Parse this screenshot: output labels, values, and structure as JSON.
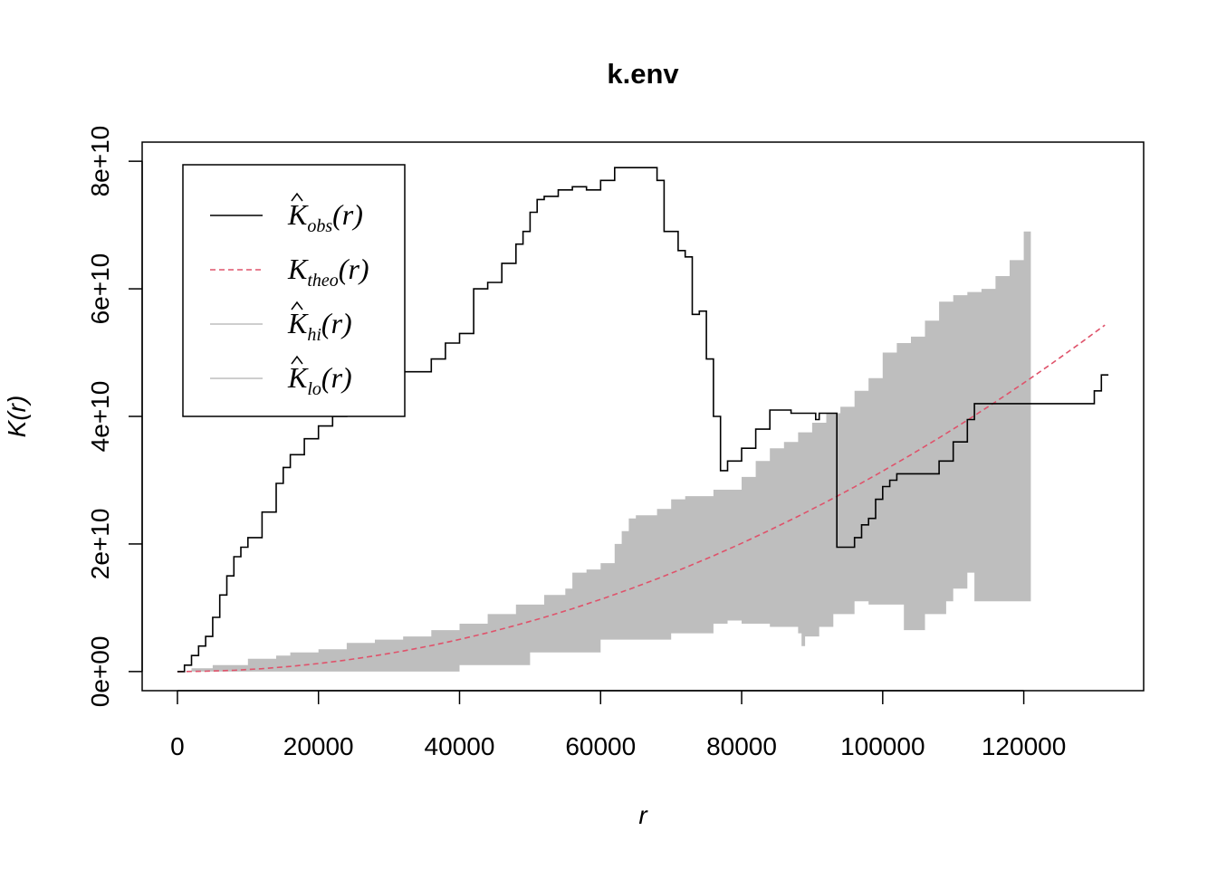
{
  "chart_data": {
    "type": "line",
    "title": "k.env",
    "xlabel": "r",
    "ylabel": "K(r)",
    "xlim": [
      -5000,
      137000
    ],
    "ylim": [
      -3000000000,
      83000000000
    ],
    "x_ticks": [
      0,
      20000,
      40000,
      60000,
      80000,
      100000,
      120000
    ],
    "x_tick_labels": [
      "0",
      "20000",
      "40000",
      "60000",
      "80000",
      "100000",
      "120000"
    ],
    "y_ticks": [
      0,
      20000000000,
      40000000000,
      60000000000,
      80000000000
    ],
    "y_tick_labels": [
      "0e+00",
      "2e+10",
      "4e+10",
      "6e+10",
      "8e+10"
    ],
    "legend": {
      "position": "top-left",
      "entries": [
        {
          "base": "K",
          "sub": "obs",
          "suffix": "(r)",
          "hat": true,
          "color": "#000000",
          "style": "solid"
        },
        {
          "base": "K",
          "sub": "theo",
          "suffix": "(r)",
          "hat": false,
          "color": "#DF536B",
          "style": "dashed"
        },
        {
          "base": "K",
          "sub": "hi",
          "suffix": "(r)",
          "hat": true,
          "color": "#BEBEBE",
          "style": "solid"
        },
        {
          "base": "K",
          "sub": "lo",
          "suffix": "(r)",
          "hat": true,
          "color": "#BEBEBE",
          "style": "solid"
        }
      ]
    },
    "series": [
      {
        "name": "obs",
        "color": "#000000",
        "style": "step",
        "x": [
          0,
          1000,
          2000,
          3000,
          4000,
          5000,
          6000,
          7000,
          8000,
          9000,
          10000,
          12000,
          14000,
          15000,
          16000,
          18000,
          20000,
          22000,
          24000,
          26000,
          28000,
          30000,
          32000,
          36000,
          38000,
          40000,
          42000,
          44000,
          46000,
          48000,
          49000,
          50000,
          51000,
          52000,
          54000,
          56000,
          58000,
          60000,
          62000,
          66000,
          68000,
          69000,
          71000,
          72000,
          73000,
          74000,
          75000,
          76000,
          77000,
          78000,
          80000,
          82000,
          84000,
          87000,
          90000,
          90500,
          91000,
          93000,
          93500,
          94000,
          96000,
          97000,
          98000,
          99000,
          100000,
          101000,
          102000,
          104000,
          108000,
          110000,
          112000,
          113000,
          129000,
          130000,
          131000,
          132000
        ],
        "y": [
          0,
          1000000000,
          2500000000,
          4000000000,
          5500000000,
          8500000000,
          12000000000,
          15000000000,
          18000000000,
          19500000000,
          21000000000,
          25000000000,
          29500000000,
          32000000000,
          34000000000,
          36500000000,
          38500000000,
          40000000000,
          40500000000,
          41500000000,
          43500000000,
          45500000000,
          47000000000,
          49000000000,
          51500000000,
          53000000000,
          60000000000,
          61000000000,
          64000000000,
          67000000000,
          69000000000,
          72000000000,
          74000000000,
          74500000000,
          75500000000,
          76000000000,
          75500000000,
          77000000000,
          79000000000,
          79000000000,
          77000000000,
          69000000000,
          66000000000,
          65000000000,
          56000000000,
          56500000000,
          49000000000,
          40000000000,
          31500000000,
          33000000000,
          35000000000,
          38000000000,
          41000000000,
          40500000000,
          40500000000,
          39500000000,
          40500000000,
          40500000000,
          19500000000,
          19500000000,
          21000000000,
          23000000000,
          24000000000,
          27000000000,
          29000000000,
          30000000000,
          31000000000,
          31000000000,
          33000000000,
          36000000000,
          39500000000,
          42000000000,
          42000000000,
          44000000000,
          46500000000,
          46500000000
        ]
      },
      {
        "name": "theo",
        "color": "#DF536B",
        "style": "dashed",
        "x": [
          0,
          4000,
          8000,
          12000,
          16000,
          20000,
          24000,
          28000,
          32000,
          36000,
          40000,
          44000,
          48000,
          52000,
          56000,
          60000,
          64000,
          68000,
          72000,
          76000,
          80000,
          84000,
          88000,
          92000,
          96000,
          100000,
          104000,
          108000,
          112000,
          116000,
          120000,
          124000,
          128000,
          131500
        ],
        "y": [
          0,
          50000000,
          200000000,
          450000000,
          800000000,
          1260000000,
          1810000000,
          2460000000,
          3220000000,
          4070000000,
          5030000000,
          6080000000,
          7240000000,
          8490000000,
          9850000000,
          11300000000,
          12870000000,
          14530000000,
          16290000000,
          18150000000,
          20110000000,
          22170000000,
          24330000000,
          26590000000,
          28950000000,
          31420000000,
          33980000000,
          36640000000,
          39410000000,
          42270000000,
          45240000000,
          48300000000,
          51470000000,
          54320000000
        ]
      },
      {
        "name": "hi",
        "color": "#BEBEBE",
        "style": "step",
        "x": [
          0,
          2000,
          5000,
          10000,
          14000,
          16000,
          20000,
          24000,
          28000,
          32000,
          36000,
          40000,
          44000,
          48000,
          52000,
          55000,
          56000,
          58000,
          60000,
          62000,
          63000,
          64000,
          65000,
          68000,
          70000,
          72000,
          76000,
          80000,
          82000,
          84000,
          86000,
          88000,
          90000,
          92000,
          94000,
          96000,
          98000,
          100000,
          102000,
          104000,
          106000,
          108000,
          110000,
          112000,
          114000,
          116000,
          118000,
          120000,
          121000
        ],
        "y": [
          0,
          500000000,
          1000000000,
          2000000000,
          2500000000,
          3000000000,
          3500000000,
          4500000000,
          5000000000,
          5500000000,
          6500000000,
          7500000000,
          9000000000,
          10500000000,
          12000000000,
          13000000000,
          15500000000,
          16000000000,
          17000000000,
          20000000000,
          22000000000,
          24000000000,
          24500000000,
          25500000000,
          27000000000,
          27500000000,
          28500000000,
          30500000000,
          33000000000,
          35000000000,
          36000000000,
          37500000000,
          39000000000,
          40500000000,
          41500000000,
          44000000000,
          46000000000,
          50000000000,
          51500000000,
          52500000000,
          55000000000,
          58000000000,
          59000000000,
          59500000000,
          60000000000,
          62000000000,
          64500000000,
          69000000000,
          69000000000
        ]
      },
      {
        "name": "lo",
        "color": "#BEBEBE",
        "style": "step",
        "x": [
          0,
          20000,
          30000,
          40000,
          50000,
          60000,
          70000,
          76000,
          78000,
          80000,
          84000,
          88000,
          88500,
          89000,
          91000,
          93000,
          96000,
          98000,
          103000,
          106000,
          109000,
          110000,
          112000,
          113000,
          121000
        ],
        "y": [
          0,
          0,
          0,
          1000000000,
          3000000000,
          5000000000,
          6000000000,
          7500000000,
          8000000000,
          7500000000,
          7000000000,
          6000000000,
          4000000000,
          5500000000,
          7000000000,
          9000000000,
          11000000000,
          10500000000,
          6500000000,
          9000000000,
          11000000000,
          13000000000,
          15500000000,
          11000000000,
          11000000000
        ]
      }
    ]
  }
}
